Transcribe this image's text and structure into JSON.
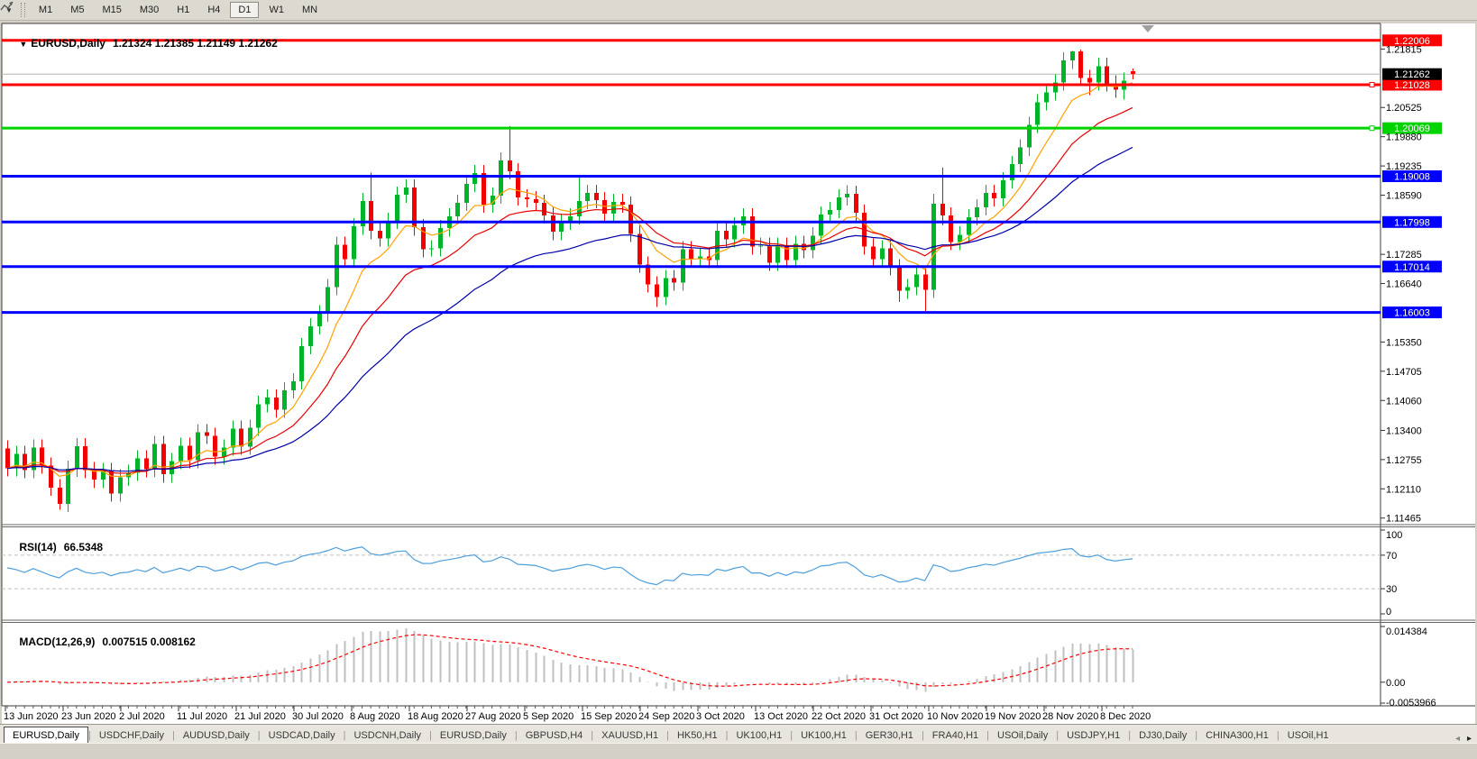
{
  "icons": {
    "collapse": "▼",
    "caret": "▼",
    "shift_marker": "triangle-down",
    "tab_left": "◂",
    "tab_right": "▸"
  },
  "toolbar": {
    "timeframes": [
      "M1",
      "M5",
      "M15",
      "M30",
      "H1",
      "H4",
      "D1",
      "W1",
      "MN"
    ],
    "active_timeframe": "D1"
  },
  "chart": {
    "title": "EURUSD,Daily",
    "ohlc": "1.21324 1.21385 1.21149 1.21262",
    "price_range": [
      1.1134,
      1.2236
    ],
    "price_ticks": [
      "1.21815",
      "1.20525",
      "1.19880",
      "1.19235",
      "1.18590",
      "1.17285",
      "1.16640",
      "1.15350",
      "1.14705",
      "1.14060",
      "1.13400",
      "1.12755",
      "1.12110",
      "1.11465"
    ],
    "current_price": {
      "label": "1.21262",
      "value": 1.21262,
      "line_color": "#b4b4b4",
      "label_bg": "#000000"
    },
    "hlines": [
      {
        "value": 1.22006,
        "label": "1.22006",
        "color": "#ff0000",
        "handle": false
      },
      {
        "value": 1.21028,
        "label": "1.21028",
        "color": "#ff0000",
        "handle": true
      },
      {
        "value": 1.20069,
        "label": "1.20069",
        "color": "#00d400",
        "handle": true
      },
      {
        "value": 1.19008,
        "label": "1.19008",
        "color": "#0000ff",
        "handle": false
      },
      {
        "value": 1.17998,
        "label": "1.17998",
        "color": "#0000ff",
        "handle": false
      },
      {
        "value": 1.17014,
        "label": "1.17014",
        "color": "#0000ff",
        "handle": false
      },
      {
        "value": 1.16003,
        "label": "1.16003",
        "color": "#0000ff",
        "handle": false
      }
    ],
    "date_labels": [
      "13 Jun 2020",
      "23 Jun 2020",
      "2 Jul 2020",
      "11 Jul 2020",
      "21 Jul 2020",
      "30 Jul 2020",
      "8 Aug 2020",
      "18 Aug 2020",
      "27 Aug 2020",
      "5 Sep 2020",
      "15 Sep 2020",
      "24 Sep 2020",
      "3 Oct 2020",
      "13 Oct 2020",
      "22 Oct 2020",
      "31 Oct 2020",
      "10 Nov 2020",
      "19 Nov 2020",
      "28 Nov 2020",
      "8 Dec 2020"
    ],
    "colors": {
      "up": "#00b42a",
      "down": "#f20000",
      "ma_fast": "#ffa200",
      "ma_mid": "#e80000",
      "ma_slow": "#0000aa"
    },
    "candles": [
      [
        1.13,
        1.1318,
        1.1238,
        1.1256
      ],
      [
        1.1256,
        1.1306,
        1.1238,
        1.1288
      ],
      [
        1.1288,
        1.1306,
        1.1234,
        1.1252
      ],
      [
        1.1252,
        1.132,
        1.1234,
        1.1302
      ],
      [
        1.1302,
        1.132,
        1.1244,
        1.1262
      ],
      [
        1.1262,
        1.128,
        1.1196,
        1.1214
      ],
      [
        1.1214,
        1.1232,
        1.1165,
        1.1178
      ],
      [
        1.1178,
        1.1273,
        1.116,
        1.1255
      ],
      [
        1.1255,
        1.1323,
        1.1237,
        1.1305
      ],
      [
        1.1305,
        1.1323,
        1.1234,
        1.1252
      ],
      [
        1.1252,
        1.127,
        1.1213,
        1.1231
      ],
      [
        1.1231,
        1.1268,
        1.1213,
        1.125
      ],
      [
        1.125,
        1.1268,
        1.1183,
        1.1201
      ],
      [
        1.1201,
        1.1254,
        1.1183,
        1.1236
      ],
      [
        1.1236,
        1.1264,
        1.1218,
        1.1246
      ],
      [
        1.1246,
        1.1296,
        1.1228,
        1.1278
      ],
      [
        1.1278,
        1.1296,
        1.1236,
        1.1254
      ],
      [
        1.1254,
        1.1328,
        1.1236,
        1.131
      ],
      [
        1.131,
        1.1328,
        1.1225,
        1.1243
      ],
      [
        1.1243,
        1.129,
        1.1225,
        1.1272
      ],
      [
        1.1272,
        1.1324,
        1.1254,
        1.1306
      ],
      [
        1.1306,
        1.1324,
        1.1256,
        1.1274
      ],
      [
        1.1274,
        1.1354,
        1.1256,
        1.1336
      ],
      [
        1.1336,
        1.1354,
        1.131,
        1.1328
      ],
      [
        1.1328,
        1.1346,
        1.1264,
        1.1282
      ],
      [
        1.1282,
        1.132,
        1.1264,
        1.1302
      ],
      [
        1.1302,
        1.1362,
        1.1284,
        1.1344
      ],
      [
        1.1344,
        1.1362,
        1.1286,
        1.1304
      ],
      [
        1.1304,
        1.1364,
        1.1286,
        1.1346
      ],
      [
        1.1346,
        1.1416,
        1.1328,
        1.1398
      ],
      [
        1.1398,
        1.143,
        1.138,
        1.1412
      ],
      [
        1.1412,
        1.143,
        1.1368,
        1.1386
      ],
      [
        1.1386,
        1.1446,
        1.1368,
        1.1428
      ],
      [
        1.1428,
        1.1466,
        1.141,
        1.1448
      ],
      [
        1.1448,
        1.1544,
        1.143,
        1.1526
      ],
      [
        1.1526,
        1.1588,
        1.1508,
        1.157
      ],
      [
        1.157,
        1.1616,
        1.1552,
        1.1598
      ],
      [
        1.1598,
        1.1674,
        1.158,
        1.1656
      ],
      [
        1.1656,
        1.1768,
        1.1638,
        1.175
      ],
      [
        1.175,
        1.1768,
        1.17,
        1.1718
      ],
      [
        1.1718,
        1.1808,
        1.17,
        1.179
      ],
      [
        1.179,
        1.1864,
        1.1772,
        1.1846
      ],
      [
        1.1846,
        1.1909,
        1.1762,
        1.178
      ],
      [
        1.178,
        1.1798,
        1.1746,
        1.1764
      ],
      [
        1.1764,
        1.182,
        1.1746,
        1.1802
      ],
      [
        1.1802,
        1.1878,
        1.1784,
        1.186
      ],
      [
        1.186,
        1.1894,
        1.1842,
        1.1876
      ],
      [
        1.1876,
        1.1894,
        1.177,
        1.1788
      ],
      [
        1.1788,
        1.1806,
        1.1722,
        1.174
      ],
      [
        1.174,
        1.176,
        1.1724,
        1.1742
      ],
      [
        1.1742,
        1.1804,
        1.1724,
        1.1786
      ],
      [
        1.1786,
        1.183,
        1.1768,
        1.1812
      ],
      [
        1.1812,
        1.186,
        1.1794,
        1.1842
      ],
      [
        1.1842,
        1.1902,
        1.1824,
        1.1884
      ],
      [
        1.1884,
        1.1926,
        1.1866,
        1.1908
      ],
      [
        1.1908,
        1.1926,
        1.182,
        1.1838
      ],
      [
        1.1838,
        1.1876,
        1.182,
        1.1858
      ],
      [
        1.1858,
        1.1954,
        1.184,
        1.1936
      ],
      [
        1.1936,
        1.2011,
        1.1894,
        1.1912
      ],
      [
        1.1912,
        1.193,
        1.1836,
        1.1854
      ],
      [
        1.1854,
        1.1872,
        1.1832,
        1.185
      ],
      [
        1.185,
        1.1868,
        1.1824,
        1.1842
      ],
      [
        1.1842,
        1.186,
        1.1796,
        1.1814
      ],
      [
        1.1814,
        1.1832,
        1.176,
        1.1778
      ],
      [
        1.1778,
        1.1818,
        1.176,
        1.18
      ],
      [
        1.18,
        1.183,
        1.1782,
        1.1812
      ],
      [
        1.1812,
        1.1901,
        1.1794,
        1.1846
      ],
      [
        1.1846,
        1.1882,
        1.1828,
        1.1864
      ],
      [
        1.1864,
        1.1882,
        1.183,
        1.1848
      ],
      [
        1.1848,
        1.1866,
        1.18,
        1.1818
      ],
      [
        1.1818,
        1.1862,
        1.18,
        1.1844
      ],
      [
        1.1844,
        1.1862,
        1.182,
        1.1838
      ],
      [
        1.1838,
        1.1856,
        1.1756,
        1.1774
      ],
      [
        1.1774,
        1.1792,
        1.1688,
        1.1706
      ],
      [
        1.1706,
        1.1724,
        1.1644,
        1.1662
      ],
      [
        1.1662,
        1.168,
        1.1612,
        1.1634
      ],
      [
        1.1634,
        1.1694,
        1.1616,
        1.1676
      ],
      [
        1.1676,
        1.1694,
        1.1648,
        1.1666
      ],
      [
        1.1666,
        1.1758,
        1.1648,
        1.174
      ],
      [
        1.174,
        1.1758,
        1.17,
        1.1718
      ],
      [
        1.1718,
        1.1742,
        1.17,
        1.1724
      ],
      [
        1.1724,
        1.1742,
        1.1698,
        1.1716
      ],
      [
        1.1716,
        1.1798,
        1.1698,
        1.178
      ],
      [
        1.178,
        1.1798,
        1.1744,
        1.1762
      ],
      [
        1.1762,
        1.181,
        1.1744,
        1.1792
      ],
      [
        1.1792,
        1.183,
        1.1774,
        1.1812
      ],
      [
        1.1812,
        1.183,
        1.1728,
        1.1746
      ],
      [
        1.1746,
        1.1766,
        1.1728,
        1.1748
      ],
      [
        1.1748,
        1.1766,
        1.1692,
        1.171
      ],
      [
        1.171,
        1.1766,
        1.1692,
        1.1748
      ],
      [
        1.1748,
        1.1766,
        1.1698,
        1.1716
      ],
      [
        1.1716,
        1.177,
        1.1698,
        1.1752
      ],
      [
        1.1752,
        1.177,
        1.172,
        1.1738
      ],
      [
        1.1738,
        1.1788,
        1.172,
        1.177
      ],
      [
        1.177,
        1.1834,
        1.1752,
        1.1816
      ],
      [
        1.1816,
        1.1844,
        1.1798,
        1.1826
      ],
      [
        1.1826,
        1.1872,
        1.1808,
        1.1854
      ],
      [
        1.1854,
        1.1881,
        1.1836,
        1.1862
      ],
      [
        1.1862,
        1.188,
        1.1802,
        1.182
      ],
      [
        1.182,
        1.1838,
        1.1728,
        1.1746
      ],
      [
        1.1746,
        1.1764,
        1.17,
        1.1718
      ],
      [
        1.1718,
        1.176,
        1.17,
        1.1742
      ],
      [
        1.1742,
        1.176,
        1.1682,
        1.17
      ],
      [
        1.17,
        1.1718,
        1.1623,
        1.1648
      ],
      [
        1.1648,
        1.1674,
        1.163,
        1.1656
      ],
      [
        1.1656,
        1.1702,
        1.1638,
        1.1684
      ],
      [
        1.1684,
        1.1702,
        1.1603,
        1.165
      ],
      [
        1.165,
        1.1862,
        1.1632,
        1.184
      ],
      [
        1.184,
        1.192,
        1.1792,
        1.1814
      ],
      [
        1.1814,
        1.1832,
        1.1738,
        1.1756
      ],
      [
        1.1756,
        1.179,
        1.1738,
        1.1772
      ],
      [
        1.1772,
        1.1828,
        1.1754,
        1.181
      ],
      [
        1.181,
        1.185,
        1.1792,
        1.1832
      ],
      [
        1.1832,
        1.1882,
        1.1814,
        1.1864
      ],
      [
        1.1864,
        1.1882,
        1.1834,
        1.1852
      ],
      [
        1.1852,
        1.191,
        1.1834,
        1.1892
      ],
      [
        1.1892,
        1.1946,
        1.1874,
        1.1928
      ],
      [
        1.1928,
        1.1982,
        1.191,
        1.1964
      ],
      [
        1.1964,
        1.2032,
        1.1946,
        1.2014
      ],
      [
        1.2014,
        1.2082,
        1.1996,
        1.2064
      ],
      [
        1.2064,
        1.2104,
        1.2046,
        1.2086
      ],
      [
        1.2086,
        1.2126,
        1.2068,
        1.2108
      ],
      [
        1.2108,
        1.2174,
        1.209,
        1.2156
      ],
      [
        1.2156,
        1.2177,
        1.2138,
        1.2176
      ],
      [
        1.2176,
        1.218,
        1.21,
        1.2118
      ],
      [
        1.2118,
        1.2136,
        1.208,
        1.2108
      ],
      [
        1.2108,
        1.2162,
        1.209,
        1.2144
      ],
      [
        1.2144,
        1.2162,
        1.2088,
        1.2106
      ],
      [
        1.2106,
        1.2124,
        1.2074,
        1.2092
      ],
      [
        1.2092,
        1.213,
        1.207,
        1.2112
      ],
      [
        1.21324,
        1.21385,
        1.21149,
        1.21262
      ]
    ]
  },
  "rsi": {
    "label": "RSI(14)",
    "value": "66.5348",
    "ticks": [
      "100",
      "70",
      "30",
      "0"
    ],
    "levels": [
      70,
      30
    ],
    "range": [
      0,
      100
    ],
    "color": "#4d9fdd"
  },
  "macd": {
    "label": "MACD(12,26,9)",
    "value": "0.007515 0.008162",
    "ticks": [
      "0.014384",
      "0.00",
      "-0.0053966"
    ],
    "range": [
      -0.0053966,
      0.014384
    ],
    "histogram_color": "#c0c0c0",
    "signal_color": "#ff0000"
  },
  "tabs": {
    "items": [
      "EURUSD,Daily",
      "USDCHF,Daily",
      "AUDUSD,Daily",
      "USDCAD,Daily",
      "USDCNH,Daily",
      "EURUSD,Daily",
      "GBPUSD,H4",
      "XAUUSD,H1",
      "HK50,H1",
      "UK100,H1",
      "UK100,H1",
      "GER30,H1",
      "FRA40,H1",
      "USOil,Daily",
      "USDJPY,H1",
      "DJ30,Daily",
      "CHINA300,H1",
      "USOil,H1"
    ],
    "active_index": 0
  }
}
